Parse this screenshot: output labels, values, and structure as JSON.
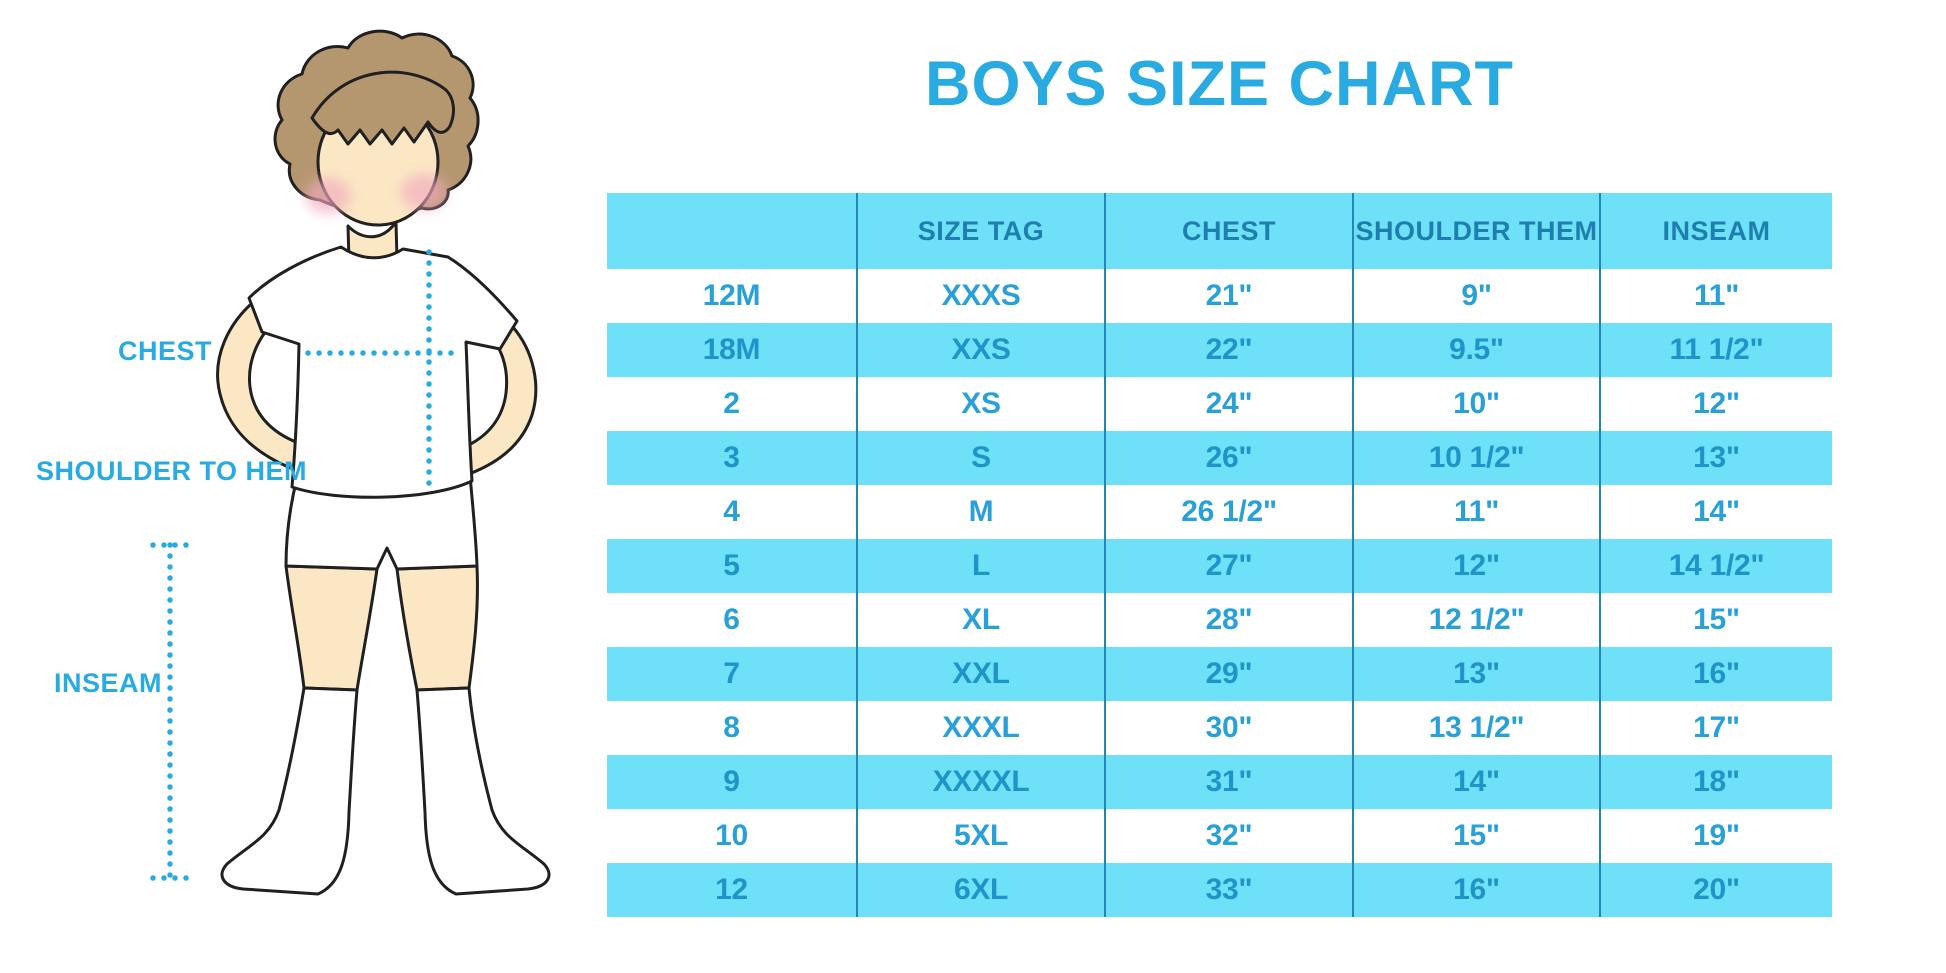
{
  "chart_data": {
    "type": "table",
    "title": "BOYS SIZE CHART",
    "columns": [
      "",
      "SIZE TAG",
      "CHEST",
      "SHOULDER THEM",
      "INSEAM"
    ],
    "rows": [
      [
        "12M",
        "XXXS",
        "21\"",
        "9\"",
        "11\""
      ],
      [
        "18M",
        "XXS",
        "22\"",
        "9.5\"",
        "11 1/2\""
      ],
      [
        "2",
        "XS",
        "24\"",
        "10\"",
        "12\""
      ],
      [
        "3",
        "S",
        "26\"",
        "10 1/2\"",
        "13\""
      ],
      [
        "4",
        "M",
        "26 1/2\"",
        "11\"",
        "14\""
      ],
      [
        "5",
        "L",
        "27\"",
        "12\"",
        "14 1/2\""
      ],
      [
        "6",
        "XL",
        "28\"",
        "12 1/2\"",
        "15\""
      ],
      [
        "7",
        "XXL",
        "29\"",
        "13\"",
        "16\""
      ],
      [
        "8",
        "XXXL",
        "30\"",
        "13 1/2\"",
        "17\""
      ],
      [
        "9",
        "XXXXL",
        "31\"",
        "14\"",
        "18\""
      ],
      [
        "10",
        "5XL",
        "32\"",
        "15\"",
        "19\""
      ],
      [
        "12",
        "6XL",
        "33\"",
        "16\"",
        "20\""
      ]
    ],
    "layout_hints": {
      "banding": "rows alternate white / cyan starting with white",
      "grid": "vertical column dividers only, no outer border"
    }
  },
  "figure": {
    "labels": {
      "chest": "CHEST",
      "shoulder_to_hem": "SHOULDER TO HEM",
      "inseam": "INSEAM"
    }
  },
  "colors": {
    "accent_blue": "#29ABE2",
    "band_cyan": "#6EE1F9",
    "divider_blue": "#2386B8",
    "header_text": "#1E7FAE",
    "cell_text": "#2AA0D8",
    "band_cell_text": "#1F94C8",
    "hair_brown": "#B5976F",
    "skin": "#FBE7C4",
    "blush_pink": "#F2A9BE",
    "outline": "#202020"
  }
}
